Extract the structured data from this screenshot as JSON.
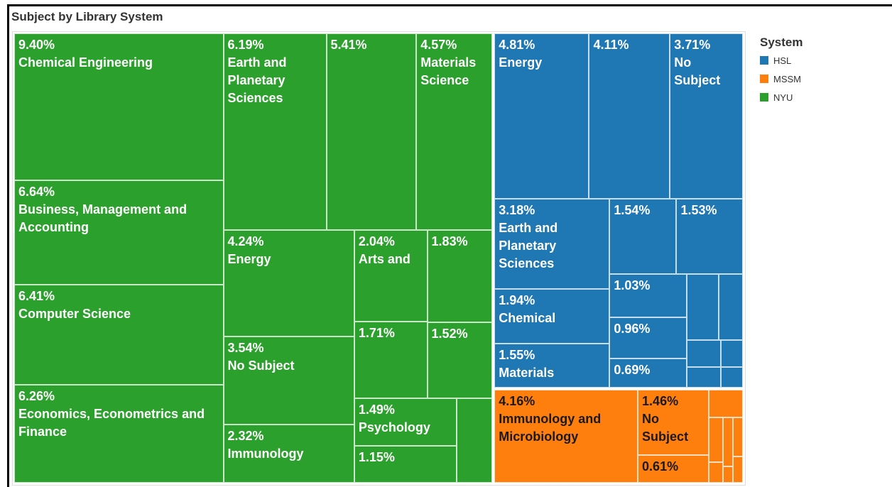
{
  "chart_data": {
    "type": "treemap",
    "title": "Subject by Library System",
    "legend_title": "System",
    "series": [
      {
        "name": "HSL",
        "color": "#1f77b4",
        "categories": [
          "Energy",
          null,
          "No Subject",
          "Earth and Planetary Sciences",
          null,
          null,
          "Chemical",
          "Materials",
          null,
          null,
          null,
          null,
          null,
          null,
          null,
          null,
          null
        ],
        "values": [
          4.81,
          4.11,
          3.71,
          3.18,
          1.54,
          1.53,
          1.94,
          1.55,
          1.03,
          0.96,
          0.69,
          0.66,
          0.49,
          0.28,
          0.18,
          0.22,
          0.14
        ],
        "value_labels": [
          "4.81%",
          "4.11%",
          "3.71%",
          "3.18%",
          "1.54%",
          "1.53%",
          "1.94%",
          "1.55%",
          "1.03%",
          "0.96%",
          "0.69%",
          null,
          null,
          null,
          null,
          null,
          null
        ]
      },
      {
        "name": "MSSM",
        "color": "#ff7f0e",
        "categories": [
          "Immunology and Microbiology",
          "No Subject",
          null,
          null,
          null,
          null,
          null,
          null,
          null,
          null
        ],
        "values": [
          4.16,
          1.46,
          0.61,
          0.29,
          0.2,
          0.09,
          0.15,
          0.05,
          0.12,
          0.08
        ],
        "value_labels": [
          "4.16%",
          "1.46%",
          "0.61%",
          null,
          null,
          null,
          null,
          null,
          null,
          null
        ]
      },
      {
        "name": "NYU",
        "color": "#2ca02c",
        "categories": [
          "Chemical Engineering",
          "Business, Management and Accounting",
          "Computer Science",
          "Economics, Econometrics and Finance",
          "Earth and Planetary Sciences",
          null,
          "Materials Science",
          "Energy",
          "No Subject",
          "Immunology",
          "Arts and",
          null,
          null,
          null,
          "Psychology",
          null,
          null
        ],
        "values": [
          9.4,
          6.64,
          6.41,
          6.26,
          6.19,
          5.41,
          4.57,
          4.24,
          3.54,
          2.32,
          2.04,
          1.83,
          1.71,
          1.52,
          1.49,
          1.15,
          0.91
        ],
        "value_labels": [
          "9.40%",
          "6.64%",
          "6.41%",
          "6.26%",
          "6.19%",
          "5.41%",
          "4.57%",
          "4.24%",
          "3.54%",
          "2.32%",
          "2.04%",
          "1.83%",
          "1.71%",
          "1.52%",
          "1.49%",
          "1.15%",
          null
        ]
      }
    ]
  }
}
